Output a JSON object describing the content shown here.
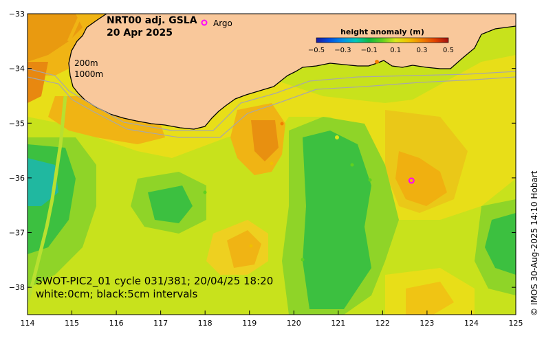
{
  "map": {
    "title_line1": "NRT00 adj. GSLA",
    "title_line2": "20 Apr 2025",
    "argo_legend": "Argo",
    "contour_labels": [
      "200m",
      "1000m"
    ],
    "swot_line1": "SWOT-PIC2_01 cycle 031/381; 20/04/25 18:20",
    "swot_line2": "white:0cm; black:5cm intervals",
    "credit": "© IMOS 30-Aug-2025 14:10 Hobart",
    "x_ticks": [
      "114",
      "115",
      "116",
      "117",
      "118",
      "119",
      "120",
      "121",
      "122",
      "123",
      "124",
      "125"
    ],
    "y_ticks": [
      "−33",
      "−34",
      "−35",
      "−36",
      "−37",
      "−38"
    ],
    "colorbar": {
      "title": "height anomaly (m)",
      "ticks": [
        "−0.5",
        "−0.3",
        "−0.1",
        "0.1",
        "0.3",
        "0.5"
      ],
      "colors": [
        "#1a1aa0",
        "#0050e0",
        "#0090e8",
        "#00c8b8",
        "#10b840",
        "#60d020",
        "#d8e818",
        "#f0c000",
        "#f08000",
        "#e04000",
        "#a01010"
      ]
    },
    "colors": {
      "land": "#f9c89b",
      "coast": "#000000",
      "bathy": "#a8a8a8",
      "argo": "#ff00ff"
    }
  },
  "chart_data": {
    "type": "heatmap",
    "title": "NRT00 adj. GSLA 20 Apr 2025",
    "variable": "height anomaly (m)",
    "color_range": [
      -0.5,
      0.5
    ],
    "xlim": [
      114,
      125
    ],
    "ylim": [
      -38.5,
      -33
    ],
    "x_ticks": [
      114,
      115,
      116,
      117,
      118,
      119,
      120,
      121,
      122,
      123,
      124,
      125
    ],
    "y_ticks": [
      -33,
      -34,
      -35,
      -36,
      -37,
      -38
    ],
    "argo_float": {
      "lon": 122.65,
      "lat": -36.05
    }
  }
}
